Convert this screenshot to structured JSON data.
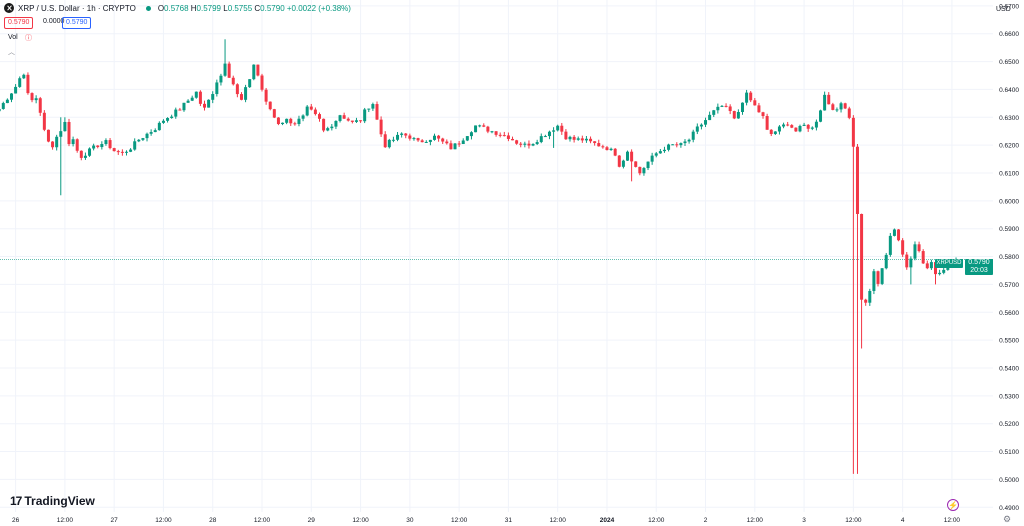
{
  "header": {
    "symbol": "XRP / U.S. Dollar · 1h · CRYPTO",
    "ohlc": {
      "o_label": "O",
      "o": "0.5768",
      "h_label": "H",
      "h": "0.5799",
      "l_label": "L",
      "l": "0.5755",
      "c_label": "C",
      "c": "0.5790",
      "change": "+0.0022 (+0.38%)"
    },
    "sell_price": "0.5790",
    "spread": "0.0000",
    "buy_price": "0.5790",
    "vol_label": "Vol",
    "currency": "USD",
    "brand": "TradingView"
  },
  "last_price": {
    "symbol": "XRPUSD",
    "price": "0.5790",
    "countdown": "20:03"
  },
  "colors": {
    "up": "#089981",
    "down": "#f23645",
    "grid": "#f0f3fa",
    "axis_text": "#131722",
    "last_line": "#089981"
  },
  "chart_data": {
    "type": "candlestick",
    "symbol": "XRPUSD",
    "interval": "1h",
    "y_ticks": [
      0.67,
      0.66,
      0.65,
      0.64,
      0.63,
      0.62,
      0.61,
      0.6,
      0.59,
      0.58,
      0.57,
      0.56,
      0.55,
      0.54,
      0.53,
      0.52,
      0.51,
      0.5,
      0.49
    ],
    "y_tick_labels": [
      "0.6700",
      "0.6600",
      "0.6500",
      "0.6400",
      "0.6300",
      "0.6200",
      "0.6100",
      "0.6000",
      "0.5900",
      "0.5800",
      "0.5700",
      "0.5600",
      "0.5500",
      "0.5400",
      "0.5300",
      "0.5200",
      "0.5100",
      "0.5000",
      "0.4900"
    ],
    "ylim": [
      0.4883,
      0.6721
    ],
    "x_ticks": [
      {
        "hour": 0,
        "label": "26"
      },
      {
        "hour": 12,
        "label": "12:00"
      },
      {
        "hour": 24,
        "label": "27"
      },
      {
        "hour": 36,
        "label": "12:00"
      },
      {
        "hour": 48,
        "label": "28"
      },
      {
        "hour": 60,
        "label": "12:00"
      },
      {
        "hour": 72,
        "label": "29"
      },
      {
        "hour": 84,
        "label": "12:00"
      },
      {
        "hour": 96,
        "label": "30"
      },
      {
        "hour": 108,
        "label": "12:00"
      },
      {
        "hour": 120,
        "label": "31"
      },
      {
        "hour": 132,
        "label": "12:00"
      },
      {
        "hour": 144,
        "label": "2024",
        "bold": true
      },
      {
        "hour": 156,
        "label": "12:00"
      },
      {
        "hour": 168,
        "label": "2"
      },
      {
        "hour": 180,
        "label": "12:00"
      },
      {
        "hour": 192,
        "label": "3"
      },
      {
        "hour": 204,
        "label": "12:00"
      },
      {
        "hour": 216,
        "label": "4"
      },
      {
        "hour": 228,
        "label": "12:00"
      }
    ],
    "hour_range": [
      -3.8,
      238
    ],
    "price_anchors": [
      [
        -4,
        0.633
      ],
      [
        -1,
        0.639
      ],
      [
        0,
        0.641
      ],
      [
        1,
        0.644
      ],
      [
        2,
        0.646
      ],
      [
        3,
        0.638
      ],
      [
        4,
        0.636
      ],
      [
        5,
        0.637
      ],
      [
        6,
        0.632
      ],
      [
        7,
        0.625
      ],
      [
        8,
        0.621
      ],
      [
        9,
        0.62
      ],
      [
        10,
        0.623
      ],
      [
        12,
        0.628
      ],
      [
        13,
        0.621
      ],
      [
        14,
        0.622
      ],
      [
        15,
        0.618
      ],
      [
        16,
        0.616
      ],
      [
        18,
        0.618
      ],
      [
        20,
        0.62
      ],
      [
        22,
        0.621
      ],
      [
        24,
        0.618
      ],
      [
        26,
        0.617
      ],
      [
        28,
        0.619
      ],
      [
        30,
        0.622
      ],
      [
        32,
        0.624
      ],
      [
        34,
        0.626
      ],
      [
        36,
        0.629
      ],
      [
        38,
        0.631
      ],
      [
        40,
        0.633
      ],
      [
        42,
        0.636
      ],
      [
        44,
        0.639
      ],
      [
        45,
        0.635
      ],
      [
        46,
        0.633
      ],
      [
        47,
        0.636
      ],
      [
        48,
        0.639
      ],
      [
        49,
        0.643
      ],
      [
        50,
        0.645
      ],
      [
        51,
        0.65
      ],
      [
        52,
        0.645
      ],
      [
        53,
        0.642
      ],
      [
        54,
        0.638
      ],
      [
        55,
        0.636
      ],
      [
        56,
        0.64
      ],
      [
        57,
        0.644
      ],
      [
        58,
        0.649
      ],
      [
        59,
        0.645
      ],
      [
        60,
        0.64
      ],
      [
        61,
        0.635
      ],
      [
        62,
        0.633
      ],
      [
        63,
        0.63
      ],
      [
        64,
        0.628
      ],
      [
        66,
        0.629
      ],
      [
        68,
        0.628
      ],
      [
        70,
        0.63
      ],
      [
        71,
        0.633
      ],
      [
        72,
        0.632
      ],
      [
        74,
        0.629
      ],
      [
        75,
        0.625
      ],
      [
        76,
        0.626
      ],
      [
        78,
        0.629
      ],
      [
        79,
        0.631
      ],
      [
        80,
        0.63
      ],
      [
        82,
        0.628
      ],
      [
        84,
        0.629
      ],
      [
        85,
        0.632
      ],
      [
        86,
        0.634
      ],
      [
        87,
        0.635
      ],
      [
        88,
        0.629
      ],
      [
        89,
        0.624
      ],
      [
        90,
        0.62
      ],
      [
        92,
        0.622
      ],
      [
        94,
        0.624
      ],
      [
        96,
        0.623
      ],
      [
        98,
        0.621
      ],
      [
        100,
        0.622
      ],
      [
        102,
        0.623
      ],
      [
        104,
        0.621
      ],
      [
        106,
        0.619
      ],
      [
        108,
        0.621
      ],
      [
        110,
        0.624
      ],
      [
        112,
        0.627
      ],
      [
        114,
        0.626
      ],
      [
        116,
        0.625
      ],
      [
        118,
        0.624
      ],
      [
        120,
        0.623
      ],
      [
        122,
        0.621
      ],
      [
        124,
        0.62
      ],
      [
        126,
        0.621
      ],
      [
        128,
        0.623
      ],
      [
        130,
        0.625
      ],
      [
        132,
        0.627
      ],
      [
        134,
        0.623
      ],
      [
        136,
        0.622
      ],
      [
        138,
        0.622
      ],
      [
        140,
        0.621
      ],
      [
        142,
        0.62
      ],
      [
        144,
        0.619
      ],
      [
        146,
        0.617
      ],
      [
        147,
        0.613
      ],
      [
        148,
        0.615
      ],
      [
        149,
        0.618
      ],
      [
        150,
        0.615
      ],
      [
        151,
        0.612
      ],
      [
        152,
        0.61
      ],
      [
        154,
        0.614
      ],
      [
        156,
        0.617
      ],
      [
        158,
        0.619
      ],
      [
        160,
        0.62
      ],
      [
        162,
        0.62
      ],
      [
        164,
        0.622
      ],
      [
        166,
        0.626
      ],
      [
        168,
        0.629
      ],
      [
        170,
        0.632
      ],
      [
        172,
        0.634
      ],
      [
        174,
        0.632
      ],
      [
        175,
        0.629
      ],
      [
        176,
        0.632
      ],
      [
        177,
        0.636
      ],
      [
        178,
        0.638
      ],
      [
        180,
        0.634
      ],
      [
        182,
        0.63
      ],
      [
        183,
        0.625
      ],
      [
        184,
        0.624
      ],
      [
        186,
        0.626
      ],
      [
        188,
        0.628
      ],
      [
        190,
        0.625
      ],
      [
        192,
        0.627
      ],
      [
        194,
        0.626
      ],
      [
        195,
        0.629
      ],
      [
        196,
        0.633
      ],
      [
        197,
        0.638
      ],
      [
        198,
        0.635
      ],
      [
        200,
        0.632
      ],
      [
        201,
        0.635
      ],
      [
        202,
        0.634
      ],
      [
        203,
        0.63
      ],
      [
        204,
        0.62
      ],
      [
        205,
        0.595
      ],
      [
        205.5,
        0.578
      ],
      [
        206,
        0.565
      ],
      [
        207,
        0.563
      ],
      [
        208,
        0.568
      ],
      [
        209,
        0.574
      ],
      [
        210,
        0.57
      ],
      [
        211,
        0.576
      ],
      [
        212,
        0.58
      ],
      [
        213,
        0.588
      ],
      [
        214,
        0.59
      ],
      [
        215,
        0.586
      ],
      [
        216,
        0.58
      ],
      [
        217,
        0.576
      ],
      [
        218,
        0.58
      ],
      [
        219,
        0.585
      ],
      [
        220,
        0.582
      ],
      [
        221,
        0.578
      ],
      [
        222,
        0.576
      ],
      [
        223,
        0.578
      ],
      [
        224,
        0.574
      ],
      [
        226,
        0.576
      ],
      [
        228,
        0.577
      ],
      [
        229,
        0.579
      ]
    ],
    "wick_events": [
      {
        "hour": 11,
        "low": 0.602
      },
      {
        "hour": 11.5,
        "high": 0.63
      },
      {
        "hour": 51,
        "high": 0.658
      },
      {
        "hour": 131,
        "low": 0.619
      },
      {
        "hour": 150,
        "low": 0.607
      },
      {
        "hour": 153,
        "low": 0.609
      },
      {
        "hour": 204.5,
        "low": 0.502,
        "high": 0.62
      },
      {
        "hour": 206,
        "low": 0.547
      },
      {
        "hour": 218,
        "low": 0.57
      },
      {
        "hour": 224,
        "low": 0.57
      }
    ],
    "last_price": 0.579
  }
}
